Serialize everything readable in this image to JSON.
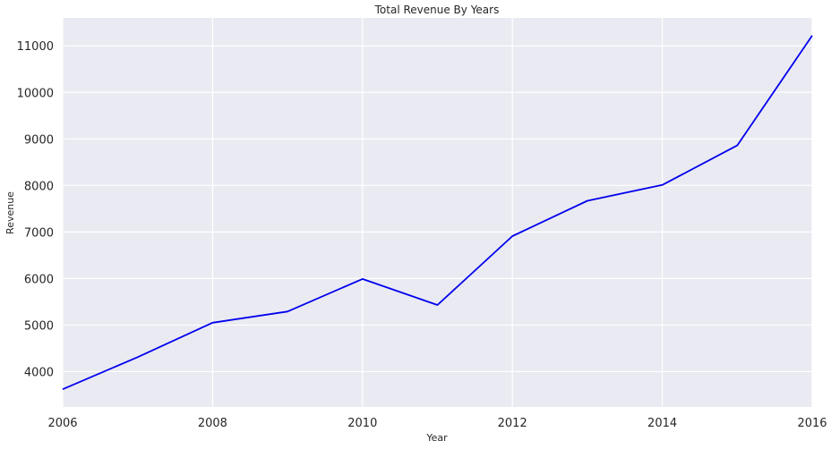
{
  "chart_data": {
    "type": "line",
    "title": "Total Revenue By Years",
    "xlabel": "Year",
    "ylabel": "Revenue",
    "x": [
      2006,
      2007,
      2008,
      2009,
      2010,
      2011,
      2012,
      2013,
      2014,
      2015,
      2016
    ],
    "series": [
      {
        "values": [
          3620,
          4310,
          5050,
          5290,
          5990,
          5430,
          6910,
          7670,
          8010,
          8860,
          11220
        ],
        "color": "#0000ee"
      }
    ],
    "xlim": [
      2006,
      2016
    ],
    "ylim": [
      3240,
      11600
    ],
    "x_ticks": [
      "2006",
      "2008",
      "2010",
      "2012",
      "2014",
      "2016"
    ],
    "y_ticks": [
      "4000",
      "5000",
      "6000",
      "7000",
      "8000",
      "9000",
      "10000",
      "11000"
    ],
    "grid": true,
    "background_color": "#eaeaf2",
    "grid_color": "#ffffff"
  }
}
